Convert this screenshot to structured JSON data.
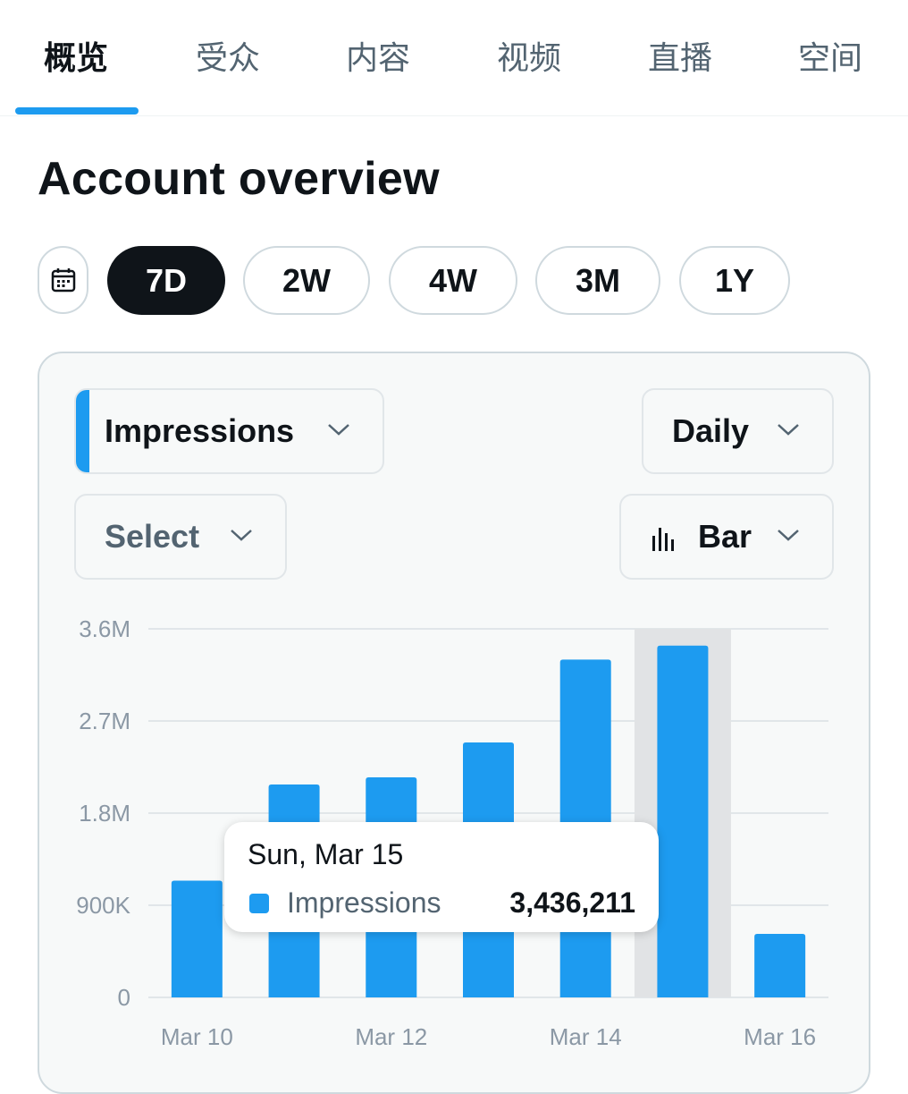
{
  "tabs": [
    {
      "label": "概览",
      "active": true
    },
    {
      "label": "受众",
      "active": false
    },
    {
      "label": "内容",
      "active": false
    },
    {
      "label": "视频",
      "active": false
    },
    {
      "label": "直播",
      "active": false
    },
    {
      "label": "空间",
      "active": false
    }
  ],
  "page_title": "Account overview",
  "range": {
    "calendar_icon": "calendar-icon",
    "options": [
      "7D",
      "2W",
      "4W",
      "3M",
      "1Y"
    ],
    "selected": "7D"
  },
  "controls": {
    "metric": "Impressions",
    "granularity": "Daily",
    "compare": "Select",
    "chart_type": "Bar",
    "chart_type_icon": "bar-chart-icon"
  },
  "colors": {
    "accent": "#1d9bf0",
    "text": "#0f1419",
    "muted": "#536471",
    "highlight": "#e1e3e5"
  },
  "chart_data": {
    "type": "bar",
    "categories": [
      "Mar 10",
      "Mar 11",
      "Mar 12",
      "Mar 13",
      "Mar 14",
      "Mar 15",
      "Mar 16"
    ],
    "series": [
      {
        "name": "Impressions",
        "values": [
          1140000,
          2080000,
          2150000,
          2490000,
          3300000,
          3436211,
          620000
        ]
      }
    ],
    "x_tick_labels": [
      "Mar 10",
      "Mar 12",
      "Mar 14",
      "Mar 16"
    ],
    "y_ticks": [
      "3.6M",
      "2.7M",
      "1.8M",
      "900K",
      "0"
    ],
    "y_tick_values": [
      3600000,
      2700000,
      1800000,
      900000,
      0
    ],
    "ylim": [
      0,
      3600000
    ],
    "grid": true,
    "highlighted_index": 5,
    "tooltip": {
      "date": "Sun, Mar 15",
      "series": "Impressions",
      "value": "3,436,211"
    }
  }
}
